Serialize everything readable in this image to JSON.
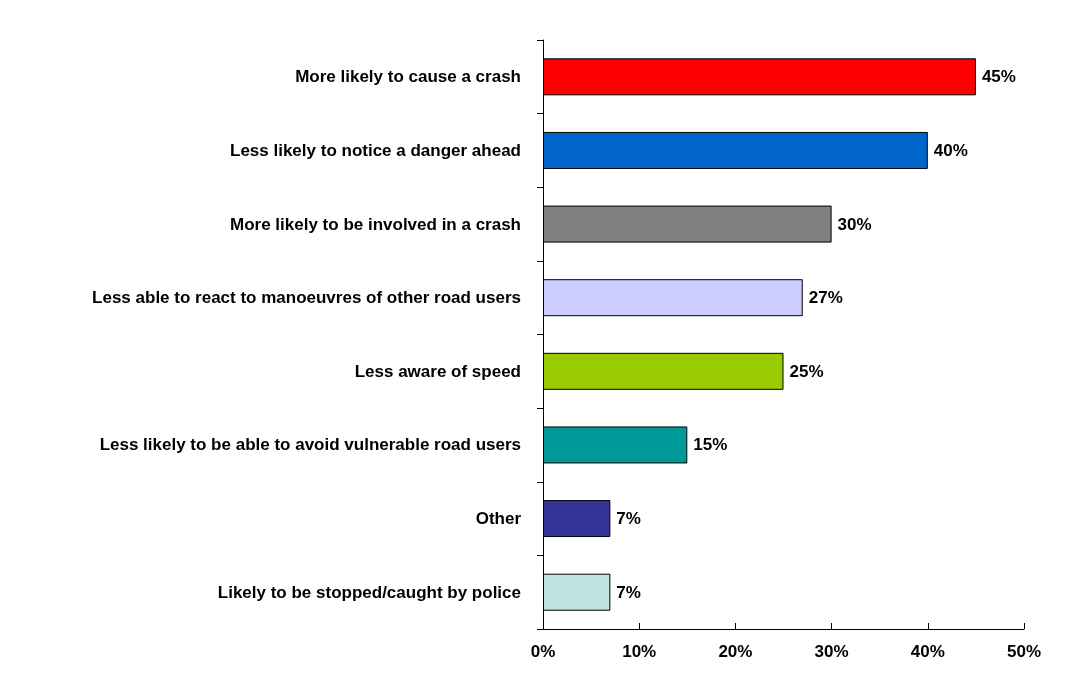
{
  "chart_data": {
    "type": "bar",
    "orientation": "horizontal",
    "categories": [
      "More likely to cause a crash",
      "Less likely to notice a danger ahead",
      "More likely to be involved in a crash",
      "Less able to react to manoeuvres of other road users",
      "Less aware of speed",
      "Less likely to be able to avoid vulnerable road users",
      "Other",
      "Likely to be stopped/caught by police"
    ],
    "values": [
      45,
      40,
      30,
      27,
      25,
      15,
      7,
      7
    ],
    "value_labels": [
      "45%",
      "40%",
      "30%",
      "27%",
      "25%",
      "15%",
      "7%",
      "7%"
    ],
    "colors": [
      "#ff0000",
      "#0066cc",
      "#808080",
      "#ccccff",
      "#99cc00",
      "#009999",
      "#333399",
      "#bde3e3"
    ],
    "xlim": [
      0,
      50
    ],
    "xticks": [
      {
        "value": 0,
        "label": "0%"
      },
      {
        "value": 10,
        "label": "10%"
      },
      {
        "value": 20,
        "label": "20%"
      },
      {
        "value": 30,
        "label": "30%"
      },
      {
        "value": 40,
        "label": "40%"
      },
      {
        "value": 50,
        "label": "50%"
      }
    ],
    "grid": false
  }
}
